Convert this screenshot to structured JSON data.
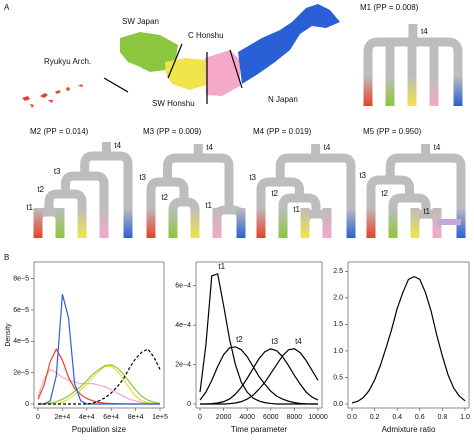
{
  "panel_a": "A",
  "panel_b": "B",
  "map_labels": [
    "SW Japan",
    "C Honshu",
    "Ryukyu Arch.",
    "SW Honshu",
    "N Japan"
  ],
  "models": [
    {
      "title": "M1 (PP = 0.008)",
      "nodes": [
        "t4"
      ]
    },
    {
      "title": "M2 (PP = 0.014)",
      "nodes": [
        "t4",
        "t3",
        "t2",
        "t1"
      ]
    },
    {
      "title": "M3 (PP = 0.009)",
      "nodes": [
        "t4",
        "t3",
        "t2",
        "t1"
      ]
    },
    {
      "title": "M4 (PP = 0.019)",
      "nodes": [
        "t4",
        "t3",
        "t2",
        "t1"
      ]
    },
    {
      "title": "M5 (PP = 0.950)",
      "nodes": [
        "t4",
        "t3",
        "t2",
        "t1"
      ]
    }
  ],
  "chart_data": [
    {
      "type": "line",
      "y_label": "Density",
      "x_label": "Population size",
      "xlim": [
        0,
        100000
      ],
      "xticks": [
        0,
        {
          "value": 20000,
          "label": "2e+4"
        },
        {
          "value": 40000,
          "label": "4e+4"
        },
        {
          "value": 60000,
          "label": "6e+4"
        },
        {
          "value": 80000,
          "label": "8e+4"
        },
        {
          "value": 100000,
          "label": "1e+5"
        }
      ],
      "ylim": [
        0,
        8.8e-05
      ],
      "yticks": [
        0,
        {
          "value": 2e-05,
          "label": "2e−5"
        },
        {
          "value": 4e-05,
          "label": "4e−5"
        },
        {
          "value": 6e-05,
          "label": "6e−5"
        },
        {
          "value": 8e-05,
          "label": "8e−5"
        }
      ],
      "x": [
        0,
        5000,
        10000,
        15000,
        20000,
        25000,
        30000,
        35000,
        40000,
        45000,
        50000,
        55000,
        60000,
        65000,
        70000,
        75000,
        80000,
        85000,
        90000,
        95000,
        100000
      ],
      "series": [
        {
          "color": "#f5a8c8",
          "values": [
            5e-06,
            1.6e-05,
            2.2e-05,
            2e-05,
            1.7e-05,
            1.5e-05,
            1.4e-05,
            1.3e-05,
            1.3e-05,
            1.3e-05,
            1.2e-05,
            1.1e-05,
            9e-06,
            7e-06,
            5e-06,
            3e-06,
            2e-06,
            1e-06,
            5e-07,
            2e-07,
            0
          ]
        },
        {
          "color": "#e8de3a",
          "values": [
            0,
            0,
            0,
            2e-07,
            1e-06,
            3e-06,
            6e-06,
            9e-06,
            1.3e-05,
            1.7e-05,
            2.1e-05,
            2.4e-05,
            2.4e-05,
            2.1e-05,
            1.6e-05,
            1e-05,
            5e-06,
            2e-06,
            1e-06,
            0,
            0
          ]
        },
        {
          "color": "#8cc63f",
          "values": [
            0,
            0,
            5e-07,
            1.5e-06,
            3e-06,
            5e-06,
            8e-06,
            1.1e-05,
            1.5e-05,
            1.9e-05,
            2.2e-05,
            2.45e-05,
            2.5e-05,
            2.3e-05,
            1.9e-05,
            1.4e-05,
            9e-06,
            5e-06,
            2.5e-06,
            1e-06,
            5e-07
          ]
        },
        {
          "color": "#e8402a",
          "values": [
            3e-06,
            1.2e-05,
            2.7e-05,
            3.5e-05,
            2.8e-05,
            1.7e-05,
            1e-05,
            6e-06,
            3.5e-06,
            2e-06,
            1e-06,
            5e-07,
            3e-07,
            2e-07,
            1e-07,
            0,
            0,
            0,
            0,
            0,
            0
          ]
        },
        {
          "color": "#2a5fd6",
          "values": [
            0,
            0,
            2e-06,
            1.8e-05,
            7e-05,
            5.5e-05,
            1.3e-05,
            2e-06,
            0,
            0,
            0,
            0,
            0,
            0,
            0,
            0,
            0,
            0,
            0,
            0,
            0
          ]
        },
        {
          "color": "#000000",
          "dash": true,
          "values": [
            0,
            0,
            0,
            0,
            0,
            0,
            0,
            0,
            0,
            5e-07,
            2e-06,
            4e-06,
            7e-06,
            1.1e-05,
            1.6e-05,
            2.3e-05,
            2.9e-05,
            3.3e-05,
            3.5e-05,
            3e-05,
            2.2e-05
          ]
        }
      ]
    },
    {
      "type": "line",
      "x_label": "Time parameter",
      "xlim": [
        0,
        10000
      ],
      "xticks": [
        0,
        2000,
        4000,
        6000,
        8000,
        10000
      ],
      "ylim": [
        0,
        0.0007
      ],
      "yticks": [
        0,
        {
          "value": 0.0002,
          "label": "2e−4"
        },
        {
          "value": 0.0004,
          "label": "4e−4"
        },
        {
          "value": 0.0006,
          "label": "6e−4"
        }
      ],
      "x": [
        0,
        500,
        1000,
        1500,
        2000,
        2500,
        3000,
        3500,
        4000,
        4500,
        5000,
        5500,
        6000,
        6500,
        7000,
        7500,
        8000,
        8500,
        9000,
        9500,
        10000
      ],
      "series": [
        {
          "name": "t1",
          "color": "#000000",
          "values": [
            6e-05,
            0.0003,
            0.00065,
            0.00066,
            0.0005,
            0.00033,
            0.0002,
            0.00011,
            6e-05,
            3e-05,
            1.5e-05,
            7e-06,
            3e-06,
            0,
            0,
            0,
            0,
            0,
            0,
            0,
            0
          ]
        },
        {
          "name": "t2",
          "color": "#000000",
          "values": [
            2e-05,
            6e-05,
            0.00012,
            0.00019,
            0.00025,
            0.000285,
            0.00029,
            0.000275,
            0.00024,
            0.00019,
            0.00014,
            0.0001,
            6.5e-05,
            4e-05,
            2.5e-05,
            1.4e-05,
            7e-06,
            3e-06,
            1e-06,
            0,
            0
          ]
        },
        {
          "name": "t3",
          "color": "#000000",
          "values": [
            0,
            0,
            2e-06,
            5e-06,
            1.2e-05,
            2.5e-05,
            5e-05,
            8.5e-05,
            0.00013,
            0.00018,
            0.00023,
            0.000265,
            0.00028,
            0.00027,
            0.00024,
            0.000195,
            0.000145,
            0.0001,
            6e-05,
            3.5e-05,
            2e-05
          ]
        },
        {
          "name": "t4",
          "color": "#000000",
          "values": [
            0,
            0,
            0,
            0,
            0,
            2e-06,
            5e-06,
            1.2e-05,
            2.5e-05,
            4.5e-05,
            7.5e-05,
            0.00011,
            0.000155,
            0.0002,
            0.000245,
            0.000275,
            0.00028,
            0.00026,
            0.00022,
            0.00017,
            0.00012
          ]
        }
      ]
    },
    {
      "type": "line",
      "x_label": "Admixture ratio",
      "xlim": [
        0,
        1
      ],
      "xticks": [
        {
          "value": 0,
          "label": "0.0"
        },
        0.2,
        0.4,
        0.6,
        0.8,
        {
          "value": 1,
          "label": "1.0"
        }
      ],
      "ylim": [
        0,
        2.6
      ],
      "yticks": [
        {
          "value": 0,
          "label": "0.0"
        },
        0.5,
        {
          "value": 1,
          "label": "1.0"
        },
        1.5,
        {
          "value": 2,
          "label": "2.0"
        },
        2.5
      ],
      "x": [
        0,
        0.05,
        0.1,
        0.15,
        0.2,
        0.25,
        0.3,
        0.35,
        0.4,
        0.45,
        0.5,
        0.55,
        0.6,
        0.65,
        0.7,
        0.75,
        0.8,
        0.85,
        0.9,
        0.95,
        1
      ],
      "series": [
        {
          "color": "#000000",
          "values": [
            0.02,
            0.05,
            0.12,
            0.25,
            0.45,
            0.72,
            1.05,
            1.4,
            1.8,
            2.1,
            2.35,
            2.4,
            2.35,
            2.1,
            1.75,
            1.3,
            0.9,
            0.55,
            0.3,
            0.15,
            0.06
          ]
        }
      ]
    }
  ]
}
